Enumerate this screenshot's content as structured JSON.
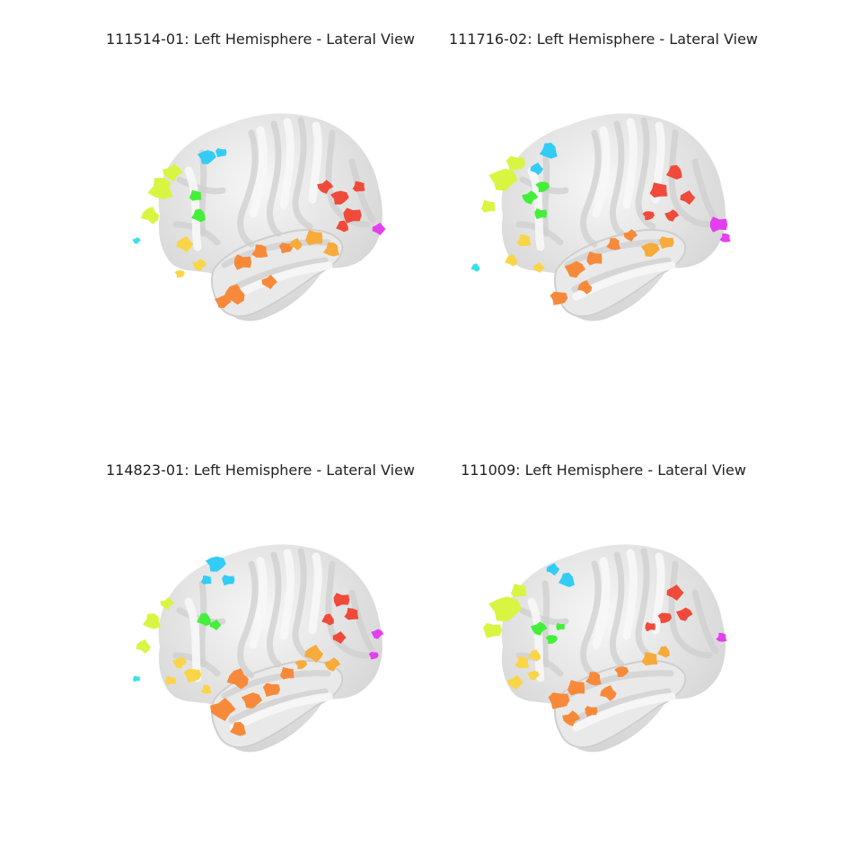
{
  "colors": {
    "cortex": "#e9e9e9",
    "gyri_highlight": "#f7f7f7",
    "sulci_shadow": "#cfcfcf",
    "region_yellow_green": "#d9f542",
    "region_cyan": "#33ccf5",
    "region_green": "#44ef3a",
    "region_yellow": "#f9d548",
    "region_orange": "#f78a3a",
    "region_light_orange": "#f7ab3a",
    "region_red": "#f04a3a",
    "region_magenta": "#e43ef0",
    "region_teal": "#3ae0e6"
  },
  "panels": [
    {
      "id": "111514-01",
      "title": "111514-01: Left Hemisphere - Lateral View"
    },
    {
      "id": "111716-02",
      "title": "111716-02: Left Hemisphere - Lateral View"
    },
    {
      "id": "114823-01",
      "title": "114823-01: Left Hemisphere - Lateral View"
    },
    {
      "id": "111009",
      "title": "111009: Left Hemisphere - Lateral View"
    }
  ]
}
